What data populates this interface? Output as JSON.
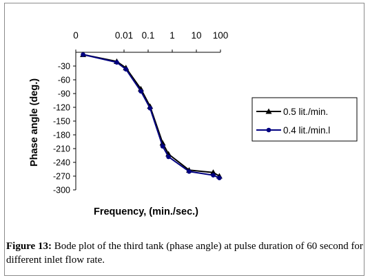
{
  "caption": {
    "label": "Figure 13:",
    "text": " Bode plot of the third tank (phase angle) at pulse duration of 60 second for different inlet flow rate."
  },
  "chart_data": {
    "type": "line",
    "title": "",
    "xlabel": "Frequency, (min./sec.)",
    "ylabel": "Phase angle (deg.)",
    "x_scale": "log",
    "x_tick_labels": [
      "0",
      "0.01",
      "0.1",
      "1",
      "10",
      "100"
    ],
    "y_ticks": [
      -30,
      -60,
      -90,
      -120,
      -150,
      -180,
      -210,
      -240,
      -270,
      -300
    ],
    "ylim": [
      -300,
      0
    ],
    "grid": false,
    "legend_position": "right",
    "series": [
      {
        "name": "0.5 lit./min.",
        "marker": "triangle",
        "color": "#000000",
        "x": [
          0.0002,
          0.005,
          0.012,
          0.05,
          0.12,
          0.4,
          0.7,
          5,
          50,
          90
        ],
        "y": [
          -5,
          -20,
          -34,
          -80,
          -118,
          -198,
          -222,
          -257,
          -262,
          -270
        ]
      },
      {
        "name": "0.4 lit./min.l",
        "marker": "circle",
        "color": "#000080",
        "x": [
          0.0002,
          0.005,
          0.012,
          0.05,
          0.12,
          0.4,
          0.7,
          5,
          50,
          90
        ],
        "y": [
          -5,
          -22,
          -37,
          -85,
          -122,
          -205,
          -228,
          -260,
          -268,
          -274
        ]
      }
    ]
  }
}
